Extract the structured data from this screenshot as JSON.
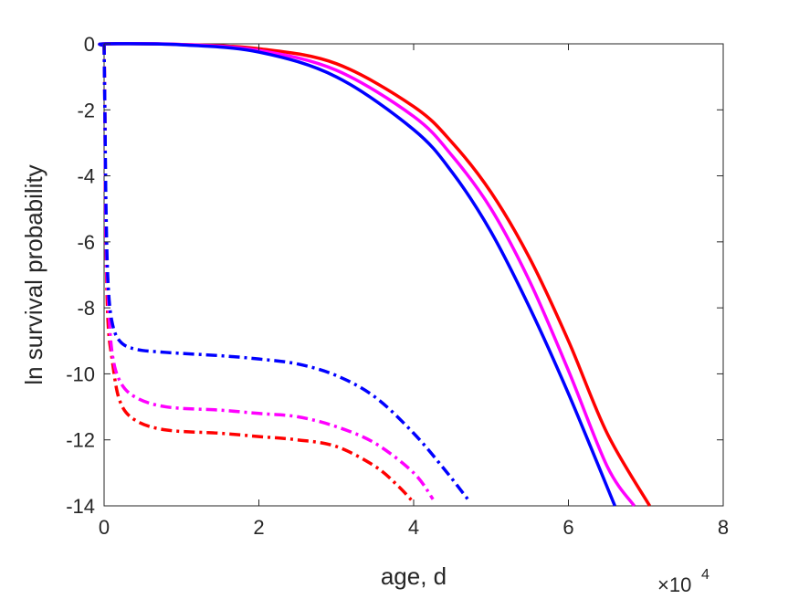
{
  "chart_data": {
    "type": "line",
    "title": "",
    "xlabel": "age, d",
    "ylabel": "ln survival probability",
    "x_exponent_label": "×10",
    "x_exponent_power": "4",
    "x_scale_factor": 10000,
    "xlim": [
      0,
      80000
    ],
    "ylim": [
      -14,
      0
    ],
    "xticks": [
      0,
      20000,
      40000,
      60000,
      80000
    ],
    "xtick_labels": [
      "0",
      "2",
      "4",
      "6",
      "8"
    ],
    "yticks": [
      0,
      -2,
      -4,
      -6,
      -8,
      -10,
      -12,
      -14
    ],
    "ytick_labels": [
      "0",
      "-2",
      "-4",
      "-6",
      "-8",
      "-10",
      "-12",
      "-14"
    ],
    "grid": false,
    "legend": "none",
    "series": [
      {
        "line_style": "solid",
        "color": "#ff0000",
        "points": [
          [
            0,
            -0.05
          ],
          [
            200,
            0.0
          ],
          [
            10000,
            -0.02
          ],
          [
            20000,
            -0.15
          ],
          [
            30000,
            -0.6
          ],
          [
            40000,
            -1.9
          ],
          [
            45000,
            -3.0
          ],
          [
            50000,
            -4.5
          ],
          [
            55000,
            -6.5
          ],
          [
            60000,
            -9.0
          ],
          [
            65000,
            -11.8
          ],
          [
            70500,
            -14.0
          ]
        ]
      },
      {
        "line_style": "solid",
        "color": "#ff00ff",
        "points": [
          [
            0,
            -0.05
          ],
          [
            200,
            0.0
          ],
          [
            10000,
            -0.02
          ],
          [
            20000,
            -0.2
          ],
          [
            30000,
            -0.8
          ],
          [
            40000,
            -2.2
          ],
          [
            45000,
            -3.4
          ],
          [
            50000,
            -5.0
          ],
          [
            55000,
            -7.2
          ],
          [
            60000,
            -9.9
          ],
          [
            65000,
            -12.8
          ],
          [
            68500,
            -14.0
          ]
        ]
      },
      {
        "line_style": "solid",
        "color": "#0000ff",
        "points": [
          [
            0,
            -0.05
          ],
          [
            200,
            0.0
          ],
          [
            10000,
            -0.03
          ],
          [
            20000,
            -0.25
          ],
          [
            30000,
            -1.0
          ],
          [
            40000,
            -2.6
          ],
          [
            45000,
            -3.9
          ],
          [
            50000,
            -5.7
          ],
          [
            55000,
            -8.0
          ],
          [
            60000,
            -10.6
          ],
          [
            66000,
            -14.0
          ]
        ]
      },
      {
        "line_style": "dashdot",
        "color": "#ff0000",
        "points": [
          [
            0,
            0.0
          ],
          [
            100,
            -2.0
          ],
          [
            250,
            -6.0
          ],
          [
            500,
            -8.4
          ],
          [
            1000,
            -9.5
          ],
          [
            2000,
            -10.8
          ],
          [
            4000,
            -11.4
          ],
          [
            8000,
            -11.7
          ],
          [
            15000,
            -11.8
          ],
          [
            20000,
            -11.9
          ],
          [
            25000,
            -12.0
          ],
          [
            30000,
            -12.2
          ],
          [
            35000,
            -12.8
          ],
          [
            38000,
            -13.4
          ],
          [
            40000,
            -13.9
          ]
        ]
      },
      {
        "line_style": "dashdot",
        "color": "#ff00ff",
        "points": [
          [
            0,
            0.0
          ],
          [
            100,
            -2.0
          ],
          [
            250,
            -6.0
          ],
          [
            500,
            -7.6
          ],
          [
            1000,
            -9.3
          ],
          [
            2000,
            -10.2
          ],
          [
            4000,
            -10.7
          ],
          [
            8000,
            -11.0
          ],
          [
            15000,
            -11.1
          ],
          [
            20000,
            -11.2
          ],
          [
            25000,
            -11.3
          ],
          [
            30000,
            -11.6
          ],
          [
            35000,
            -12.1
          ],
          [
            40000,
            -13.0
          ],
          [
            42500,
            -13.8
          ]
        ]
      },
      {
        "line_style": "dashdot",
        "color": "#0000ff",
        "points": [
          [
            0,
            0.0
          ],
          [
            100,
            -2.0
          ],
          [
            250,
            -5.0
          ],
          [
            500,
            -7.2
          ],
          [
            1000,
            -8.4
          ],
          [
            2000,
            -9.0
          ],
          [
            4000,
            -9.25
          ],
          [
            8000,
            -9.35
          ],
          [
            15000,
            -9.45
          ],
          [
            20000,
            -9.55
          ],
          [
            25000,
            -9.7
          ],
          [
            30000,
            -10.05
          ],
          [
            35000,
            -10.7
          ],
          [
            40000,
            -11.8
          ],
          [
            44000,
            -12.9
          ],
          [
            47000,
            -13.8
          ]
        ]
      }
    ]
  }
}
